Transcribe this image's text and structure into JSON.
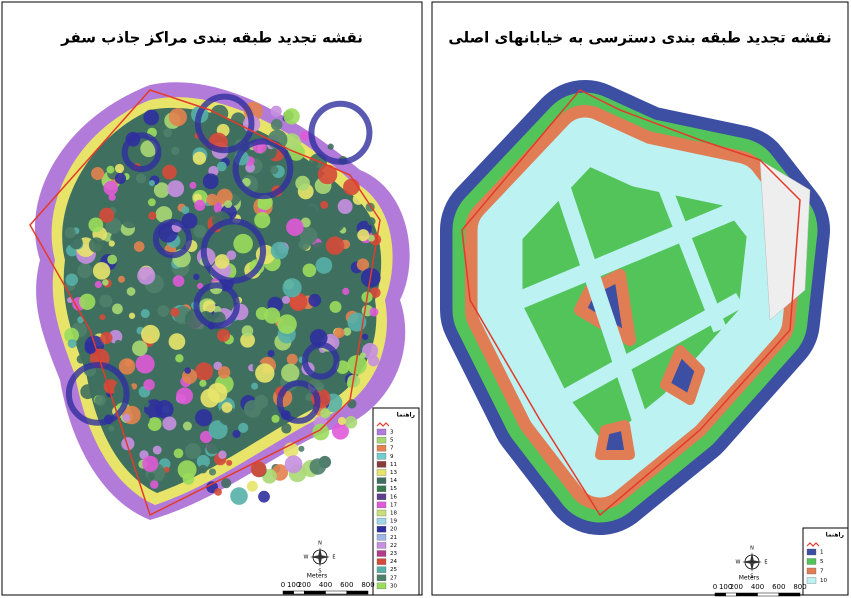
{
  "panels": [
    {
      "title": "نقشه تجدید طبقه بندی مراکز جاذب سفر",
      "legend": {
        "title": "راهنما",
        "items": [
          {
            "label": "3",
            "color": "#b37bd9"
          },
          {
            "label": "5",
            "color": "#a9d873"
          },
          {
            "label": "7",
            "color": "#e3824f"
          },
          {
            "label": "9",
            "color": "#6fcfd0"
          },
          {
            "label": "11",
            "color": "#8a3b3b"
          },
          {
            "label": "13",
            "color": "#e8e46a"
          },
          {
            "label": "14",
            "color": "#3f6f5f"
          },
          {
            "label": "15",
            "color": "#3b7a4f"
          },
          {
            "label": "16",
            "color": "#5d3f8f"
          },
          {
            "label": "17",
            "color": "#e05ad8"
          },
          {
            "label": "18",
            "color": "#c9e07a"
          },
          {
            "label": "19",
            "color": "#9fd6e8"
          },
          {
            "label": "20",
            "color": "#2f2f9f"
          },
          {
            "label": "21",
            "color": "#9fb7e8"
          },
          {
            "label": "22",
            "color": "#c78fe0"
          },
          {
            "label": "23",
            "color": "#b53a8a"
          },
          {
            "label": "24",
            "color": "#d64a3a"
          },
          {
            "label": "25",
            "color": "#57b0a8"
          },
          {
            "label": "27",
            "color": "#4e7f6a"
          },
          {
            "label": "30",
            "color": "#9bdc5c"
          }
        ]
      },
      "north": {
        "n": "N",
        "s": "S",
        "e": "E",
        "w": "W"
      },
      "scale": {
        "labels": [
          "0",
          "100",
          "200",
          "400",
          "600",
          "800"
        ],
        "unit": "Meters"
      }
    },
    {
      "title": "نقشه تجدید طبقه بندی دسترسی به خیابانهای اصلی",
      "legend": {
        "title": "راهنما",
        "items": [
          {
            "label": "1",
            "color": "#3c4fa2"
          },
          {
            "label": "5",
            "color": "#52c45a"
          },
          {
            "label": "7",
            "color": "#e07d55"
          },
          {
            "label": "10",
            "color": "#bdf2f2"
          }
        ]
      },
      "north": {
        "n": "N",
        "s": "S",
        "e": "E",
        "w": "W"
      },
      "scale": {
        "labels": [
          "0",
          "100",
          "200",
          "400",
          "600",
          "800"
        ],
        "unit": "Meters"
      }
    }
  ]
}
